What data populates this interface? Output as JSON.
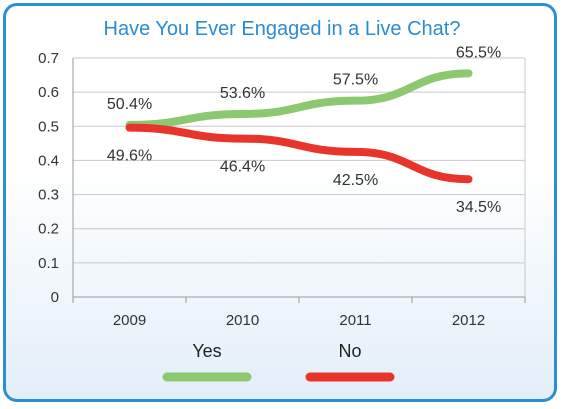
{
  "chart_data": {
    "type": "line",
    "title": "Have You Ever Engaged in a Live Chat?",
    "xlabel": "",
    "ylabel": "",
    "categories": [
      "2009",
      "2010",
      "2011",
      "2012"
    ],
    "ylim": [
      0,
      0.7
    ],
    "yticks": [
      "0",
      "0.1",
      "0.2",
      "0.3",
      "0.4",
      "0.5",
      "0.6",
      "0.7"
    ],
    "grid": true,
    "legend_position": "bottom",
    "series": [
      {
        "name": "Yes",
        "color": "#8cc870",
        "values": [
          0.504,
          0.536,
          0.575,
          0.655
        ],
        "data_labels": [
          "50.4%",
          "53.6%",
          "57.5%",
          "65.5%"
        ]
      },
      {
        "name": "No",
        "color": "#e8342a",
        "values": [
          0.496,
          0.464,
          0.425,
          0.345
        ],
        "data_labels": [
          "49.6%",
          "46.4%",
          "42.5%",
          "34.5%"
        ]
      }
    ]
  }
}
